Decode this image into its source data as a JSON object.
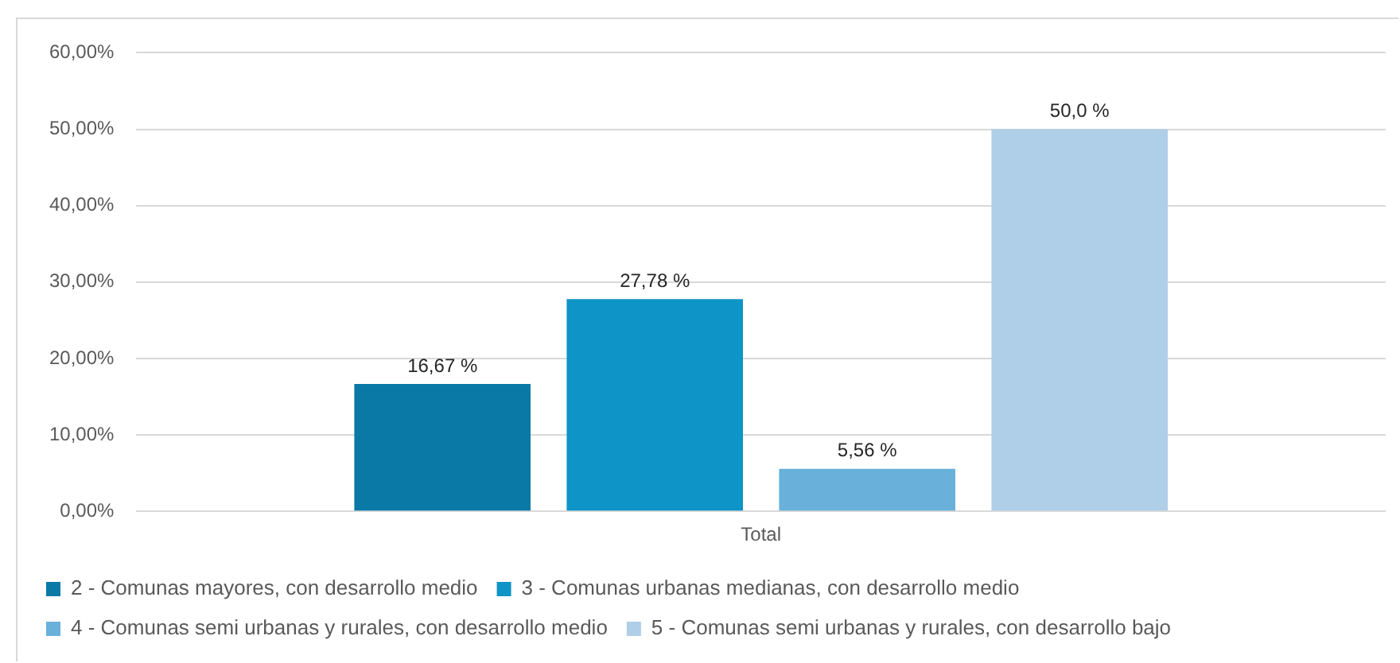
{
  "chart_data": {
    "type": "bar",
    "categories": [
      "Total"
    ],
    "series": [
      {
        "name": "2 - Comunas mayores, con desarrollo medio",
        "color": "#0a79a6",
        "values": [
          16.67
        ],
        "value_labels": [
          "16,67 %"
        ]
      },
      {
        "name": "3 - Comunas urbanas medianas, con desarrollo medio",
        "color": "#0e94c6",
        "values": [
          27.78
        ],
        "value_labels": [
          "27,78 %"
        ]
      },
      {
        "name": "4 - Comunas semi urbanas y rurales, con desarrollo medio",
        "color": "#69b0db",
        "values": [
          5.56
        ],
        "value_labels": [
          "5,56 %"
        ]
      },
      {
        "name": "5 - Comunas semi urbanas y rurales, con desarrollo bajo",
        "color": "#afcee7",
        "values": [
          50.0
        ],
        "value_labels": [
          "50,0 %"
        ]
      }
    ],
    "ylim": [
      0,
      60
    ],
    "yticks": [
      {
        "value": 0,
        "label": "0,00%"
      },
      {
        "value": 10,
        "label": "10,00%"
      },
      {
        "value": 20,
        "label": "20,00%"
      },
      {
        "value": 30,
        "label": "30,00%"
      },
      {
        "value": 40,
        "label": "40,00%"
      },
      {
        "value": 50,
        "label": "50,00%"
      },
      {
        "value": 60,
        "label": "60,00%"
      }
    ],
    "grid": "y",
    "legend": "bottom"
  }
}
